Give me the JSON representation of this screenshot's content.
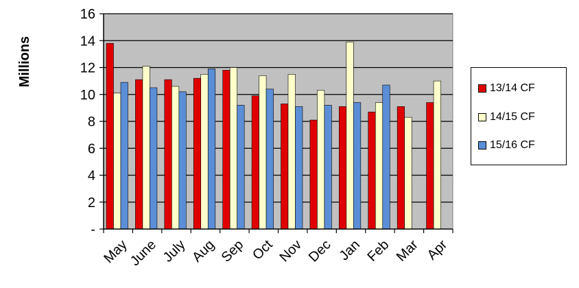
{
  "chart_data": {
    "type": "bar",
    "ylabel": "Millions",
    "ylim": [
      0,
      16
    ],
    "yticks": [
      0,
      2,
      4,
      6,
      8,
      10,
      12,
      14,
      16
    ],
    "ytick_labels": [
      "-",
      "2",
      "4",
      "6",
      "8",
      "10",
      "12",
      "14",
      "16"
    ],
    "categories": [
      "May",
      "June",
      "July",
      "Aug",
      "Sep",
      "Oct",
      "Nov",
      "Dec",
      "Jan",
      "Feb",
      "Mar",
      "Apr"
    ],
    "grid": true,
    "legend_position": "right",
    "plot_background": "#c0c0c0",
    "series": [
      {
        "name": "13/14 CF",
        "color": "#e00000",
        "values": [
          13.8,
          11.1,
          11.1,
          11.2,
          11.8,
          9.9,
          9.3,
          8.1,
          9.1,
          8.7,
          9.1,
          9.4
        ]
      },
      {
        "name": "14/15 CF",
        "color": "#ffffcc",
        "values": [
          10.1,
          12.1,
          10.6,
          11.5,
          12.0,
          11.4,
          11.5,
          10.3,
          13.9,
          9.4,
          8.3,
          11.0
        ]
      },
      {
        "name": "15/16 CF",
        "color": "#5b8ed6",
        "values": [
          10.9,
          10.5,
          10.2,
          11.9,
          9.2,
          10.4,
          9.1,
          9.2,
          9.4,
          10.7,
          null,
          null
        ]
      }
    ]
  }
}
